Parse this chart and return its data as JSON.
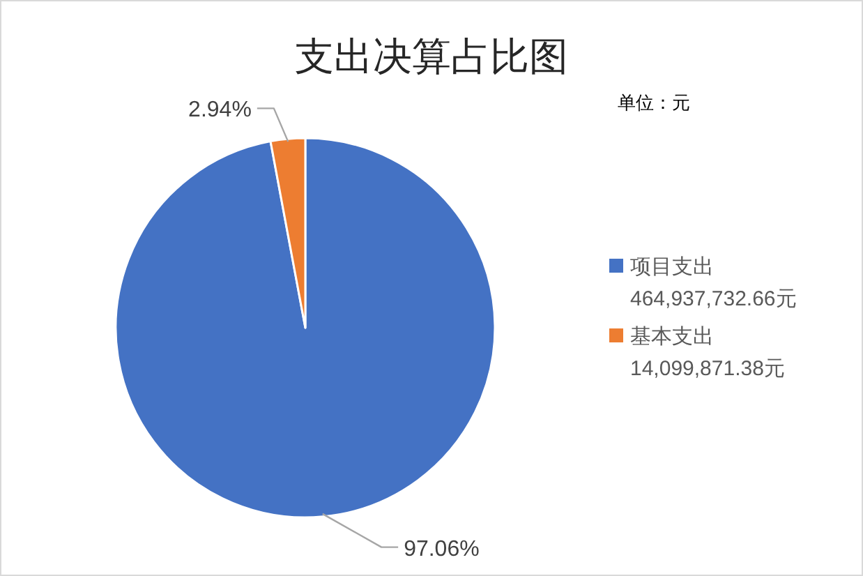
{
  "chart_data": {
    "type": "pie",
    "title": "支出决算占比图",
    "categories": [
      "项目支出 464,937,732.66元",
      "基本支出 14,099,871.38元"
    ],
    "values": [
      97.06,
      2.94
    ],
    "value_labels": [
      "97.06%",
      "2.94%"
    ],
    "colors": [
      "#4472c4",
      "#ed7d31"
    ],
    "legend": "right",
    "annotations": [
      "单位：元"
    ]
  }
}
